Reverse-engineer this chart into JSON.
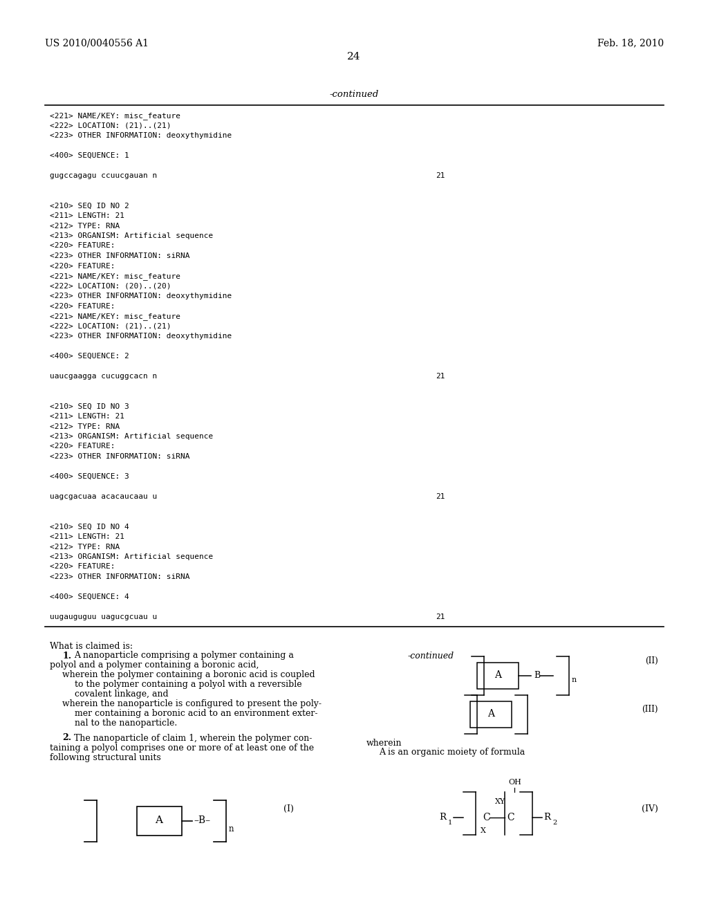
{
  "page_width": 10.24,
  "page_height": 13.2,
  "bg_color": "#ffffff",
  "header_left": "US 2010/0040556 A1",
  "header_right": "Feb. 18, 2010",
  "page_number": "24",
  "mono_lines": [
    "<221> NAME/KEY: misc_feature",
    "<222> LOCATION: (21)..(21)",
    "<223> OTHER INFORMATION: deoxythymidine",
    "",
    "<400> SEQUENCE: 1",
    "",
    "gugccagagu ccuucgauan n",
    "",
    "",
    "<210> SEQ ID NO 2",
    "<211> LENGTH: 21",
    "<212> TYPE: RNA",
    "<213> ORGANISM: Artificial sequence",
    "<220> FEATURE:",
    "<223> OTHER INFORMATION: siRNA",
    "<220> FEATURE:",
    "<221> NAME/KEY: misc_feature",
    "<222> LOCATION: (20)..(20)",
    "<223> OTHER INFORMATION: deoxythymidine",
    "<220> FEATURE:",
    "<221> NAME/KEY: misc_feature",
    "<222> LOCATION: (21)..(21)",
    "<223> OTHER INFORMATION: deoxythymidine",
    "",
    "<400> SEQUENCE: 2",
    "",
    "uaucgaagga cucuggcacn n",
    "",
    "",
    "<210> SEQ ID NO 3",
    "<211> LENGTH: 21",
    "<212> TYPE: RNA",
    "<213> ORGANISM: Artificial sequence",
    "<220> FEATURE:",
    "<223> OTHER INFORMATION: siRNA",
    "",
    "<400> SEQUENCE: 3",
    "",
    "uagcgacuaa acacaucaau u",
    "",
    "",
    "<210> SEQ ID NO 4",
    "<211> LENGTH: 21",
    "<212> TYPE: RNA",
    "<213> ORGANISM: Artificial sequence",
    "<220> FEATURE:",
    "<223> OTHER INFORMATION: siRNA",
    "",
    "<400> SEQUENCE: 4",
    "",
    "uugauguguu uagucgcuau u"
  ],
  "seq_line_indices": [
    6,
    26,
    38,
    50
  ],
  "seq_numbers": [
    "21",
    "21",
    "21",
    "21"
  ]
}
